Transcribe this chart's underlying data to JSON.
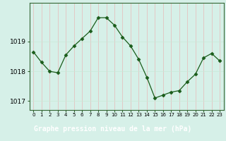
{
  "x": [
    0,
    1,
    2,
    3,
    4,
    5,
    6,
    7,
    8,
    9,
    10,
    11,
    12,
    13,
    14,
    15,
    16,
    17,
    18,
    19,
    20,
    21,
    22,
    23
  ],
  "y": [
    1018.65,
    1018.3,
    1018.0,
    1017.95,
    1018.55,
    1018.85,
    1019.1,
    1019.35,
    1019.8,
    1019.8,
    1019.55,
    1019.15,
    1018.85,
    1018.4,
    1017.8,
    1017.1,
    1017.2,
    1017.3,
    1017.35,
    1017.65,
    1017.9,
    1018.45,
    1018.6,
    1018.35
  ],
  "ylim": [
    1016.7,
    1020.3
  ],
  "yticks": [
    1017,
    1018,
    1019
  ],
  "xticks": [
    0,
    1,
    2,
    3,
    4,
    5,
    6,
    7,
    8,
    9,
    10,
    11,
    12,
    13,
    14,
    15,
    16,
    17,
    18,
    19,
    20,
    21,
    22,
    23
  ],
  "xlabel": "Graphe pression niveau de la mer (hPa)",
  "line_color": "#1a5c1a",
  "marker_color": "#1a5c1a",
  "bg_color": "#d6f0e8",
  "grid_color_v": "#e8b8b8",
  "grid_color_h": "#c8e8d8",
  "border_color": "#336633",
  "xlabel_bg": "#336633",
  "xlabel_color": "#ffffff",
  "xlabel_fontsize": 7.0,
  "ylabel_fontsize": 6.5,
  "xtick_fontsize": 5.0
}
